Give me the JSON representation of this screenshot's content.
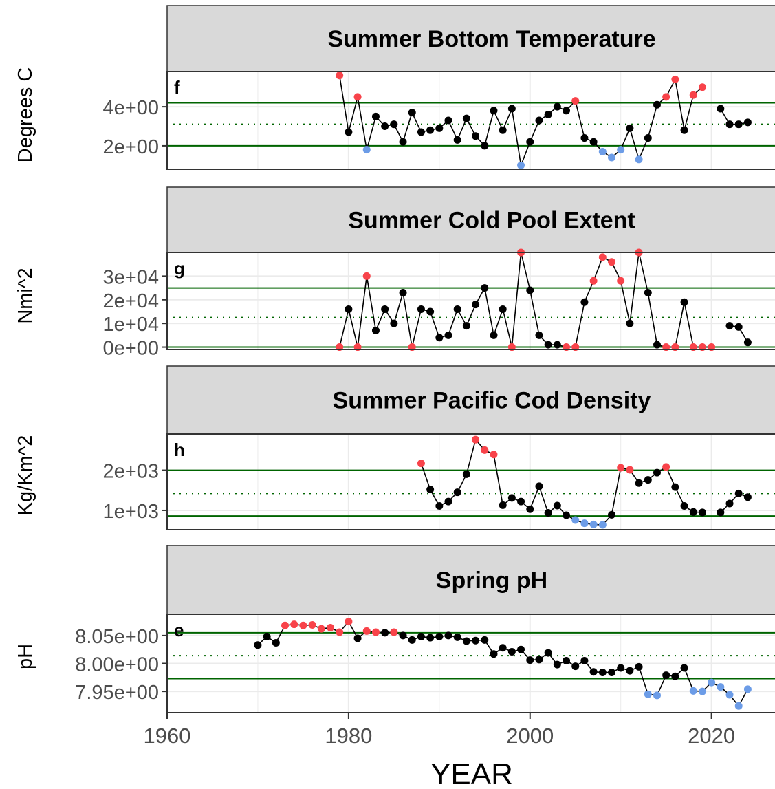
{
  "chart_data": [
    {
      "type": "line",
      "panel_letter": "f",
      "title": "Summer Bottom Temperature",
      "ylabel": "Degrees C",
      "yticks": [
        2,
        4
      ],
      "ytick_labels": [
        "2e+00",
        "4e+00"
      ],
      "ylim": [
        0.8,
        5.8
      ],
      "upper_line": 4.2,
      "mean_line": 3.1,
      "lower_line": 2.0,
      "colors": {
        "high": "#f8434a",
        "low": "#6c9ce7",
        "normal": "#000000"
      },
      "segments": [
        {
          "x": [
            1979,
            1980,
            1981,
            1982,
            1983,
            1984,
            1985,
            1986,
            1987,
            1988,
            1989,
            1990,
            1991,
            1992,
            1993,
            1994,
            1995,
            1996,
            1997,
            1998,
            1999,
            2000,
            2001,
            2002,
            2003,
            2004,
            2005,
            2006,
            2007,
            2008,
            2009,
            2010,
            2011,
            2012,
            2013,
            2014,
            2015,
            2016,
            2017,
            2018,
            2019
          ],
          "y": [
            5.6,
            2.7,
            4.5,
            1.8,
            3.5,
            3.0,
            3.1,
            2.2,
            3.7,
            2.7,
            2.8,
            2.9,
            3.3,
            2.3,
            3.4,
            2.5,
            2.0,
            3.8,
            2.8,
            3.9,
            1.0,
            2.2,
            3.3,
            3.6,
            4.0,
            3.8,
            4.3,
            2.4,
            2.2,
            1.7,
            1.4,
            1.8,
            2.9,
            1.3,
            2.4,
            4.1,
            4.5,
            5.4,
            2.8,
            4.6,
            5.0
          ]
        },
        {
          "x": [
            2021,
            2022,
            2023,
            2024
          ],
          "y": [
            3.9,
            3.1,
            3.1,
            3.2
          ]
        }
      ]
    },
    {
      "type": "line",
      "panel_letter": "g",
      "title": "Summer Cold Pool Extent",
      "ylabel": "Nmi^2",
      "yticks": [
        0,
        10000,
        20000,
        30000
      ],
      "ytick_labels": [
        "0e+00",
        "1e+04",
        "2e+04",
        "3e+04"
      ],
      "ylim": [
        -1000,
        40000
      ],
      "upper_line": 25000,
      "mean_line": 12500,
      "lower_line": 0,
      "colors": {
        "high": "#f8434a",
        "low": "#6c9ce7",
        "normal": "#000000"
      },
      "segments": [
        {
          "x": [
            1979,
            1980,
            1981,
            1982,
            1983,
            1984,
            1985,
            1986,
            1987,
            1988,
            1989,
            1990,
            1991,
            1992,
            1993,
            1994,
            1995,
            1996,
            1997,
            1998,
            1999,
            2000,
            2001,
            2002,
            2003,
            2004,
            2005,
            2006,
            2007,
            2008,
            2009,
            2010,
            2011,
            2012,
            2013,
            2014,
            2015,
            2016,
            2017,
            2018,
            2019,
            2020
          ],
          "y": [
            0,
            16000,
            0,
            30000,
            7000,
            16000,
            10000,
            23000,
            0,
            16000,
            15000,
            4000,
            5000,
            16000,
            9000,
            18000,
            25000,
            5000,
            16000,
            0,
            40000,
            24000,
            5000,
            1000,
            1000,
            0,
            0,
            19000,
            28000,
            38000,
            36000,
            28000,
            10000,
            40000,
            23000,
            1000,
            0,
            0,
            19000,
            0,
            0,
            0
          ]
        },
        {
          "x": [
            2022,
            2023,
            2024
          ],
          "y": [
            9000,
            8500,
            2000
          ]
        }
      ]
    },
    {
      "type": "line",
      "panel_letter": "h",
      "title": "Summer Pacific Cod Density",
      "ylabel": "Kg/Km^2",
      "yticks": [
        1000,
        2000
      ],
      "ytick_labels": [
        "1e+03",
        "2e+03"
      ],
      "ylim": [
        520,
        2900
      ],
      "upper_line": 2000,
      "mean_line": 1420,
      "lower_line": 860,
      "colors": {
        "high": "#f8434a",
        "low": "#6c9ce7",
        "normal": "#000000"
      },
      "segments": [
        {
          "x": [
            1988,
            1989,
            1990,
            1991,
            1992,
            1993,
            1994,
            1995,
            1996,
            1997,
            1998,
            1999,
            2000,
            2001,
            2002,
            2003,
            2004,
            2005,
            2006,
            2007,
            2008,
            2009,
            2010,
            2011,
            2012,
            2013,
            2014,
            2015,
            2016,
            2017,
            2018,
            2019
          ],
          "y": [
            2170,
            1520,
            1110,
            1220,
            1450,
            1900,
            2760,
            2500,
            2390,
            1130,
            1310,
            1220,
            1030,
            1600,
            940,
            1120,
            880,
            760,
            680,
            650,
            640,
            890,
            2060,
            2010,
            1680,
            1760,
            1940,
            2080,
            1580,
            1110,
            960,
            950
          ]
        },
        {
          "x": [
            2021,
            2022,
            2023,
            2024
          ],
          "y": [
            950,
            1170,
            1420,
            1330
          ]
        }
      ]
    },
    {
      "type": "line",
      "panel_letter": "e",
      "title": "Spring pH",
      "ylabel": "pH",
      "yticks": [
        7.95,
        8.0,
        8.05
      ],
      "ytick_labels": [
        "7.95e+00",
        "8.00e+00",
        "8.05e+00"
      ],
      "ylim": [
        7.912,
        8.088
      ],
      "upper_line": 8.055,
      "mean_line": 8.014,
      "lower_line": 7.973,
      "colors": {
        "high": "#f8434a",
        "low": "#6c9ce7",
        "normal": "#000000"
      },
      "segments": [
        {
          "x": [
            1970,
            1971,
            1972,
            1973,
            1974,
            1975,
            1976,
            1977,
            1978,
            1979,
            1980,
            1981,
            1982,
            1983,
            1984,
            1985,
            1986,
            1987,
            1988,
            1989,
            1990,
            1991,
            1992,
            1993,
            1994,
            1995,
            1996,
            1997,
            1998,
            1999,
            2000,
            2001,
            2002,
            2003,
            2004,
            2005,
            2006,
            2007,
            2008,
            2009,
            2010,
            2011,
            2012,
            2013,
            2014,
            2015,
            2016,
            2017,
            2018,
            2019,
            2020,
            2021,
            2022,
            2023,
            2024
          ],
          "y": [
            8.033,
            8.048,
            8.037,
            8.068,
            8.07,
            8.068,
            8.069,
            8.062,
            8.064,
            8.056,
            8.075,
            8.045,
            8.058,
            8.056,
            8.055,
            8.056,
            8.05,
            8.042,
            8.048,
            8.046,
            8.048,
            8.05,
            8.047,
            8.04,
            8.041,
            8.042,
            8.017,
            8.028,
            8.021,
            8.025,
            8.006,
            8.007,
            8.019,
            7.998,
            8.005,
            7.995,
            8.005,
            7.985,
            7.984,
            7.984,
            7.992,
            7.987,
            7.994,
            7.945,
            7.943,
            7.979,
            7.977,
            7.992,
            7.951,
            7.95,
            7.966,
            7.958,
            7.944,
            7.924,
            7.954
          ]
        }
      ]
    }
  ],
  "xaxis": {
    "label": "YEAR",
    "xlim": [
      1960,
      2027
    ],
    "ticks": [
      1960,
      1980,
      2000,
      2020
    ],
    "tick_labels": [
      "1960",
      "1980",
      "2000",
      "2020"
    ]
  },
  "theme": {
    "strip_fill": "#d9d9d9",
    "threshold_color": "#006400",
    "grid_color": "#ebebeb",
    "frame_color": "#333333"
  }
}
